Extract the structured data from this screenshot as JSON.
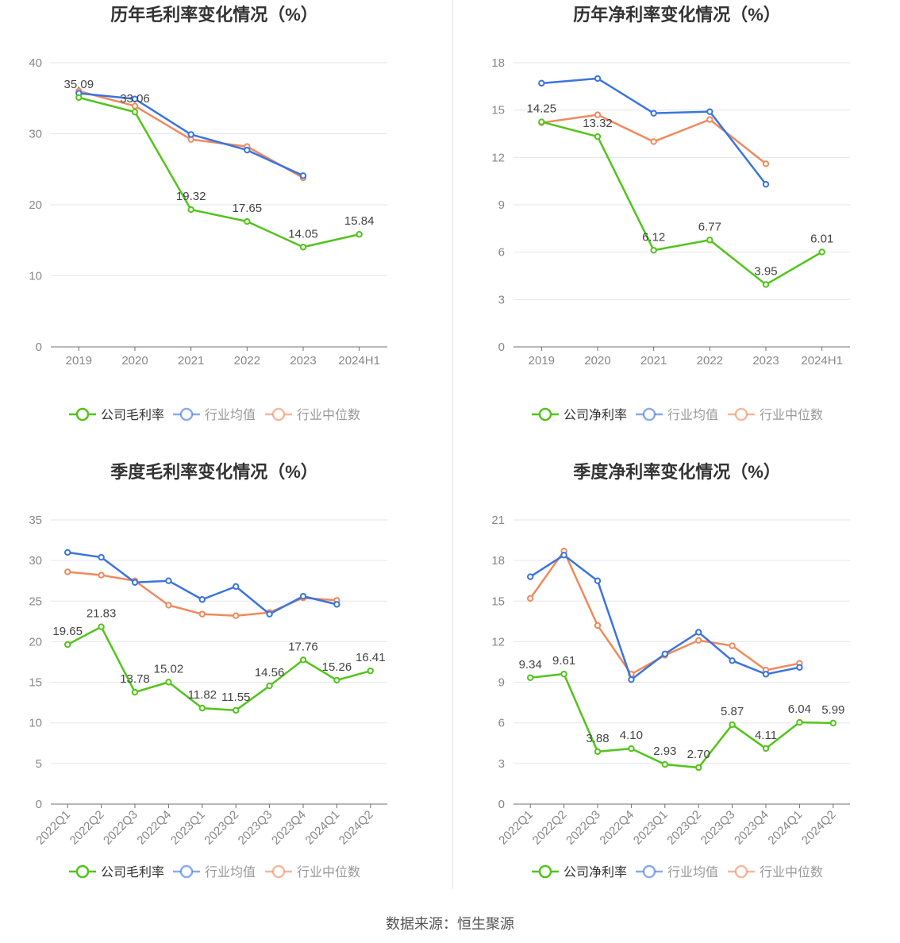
{
  "colors": {
    "company": "#52c41a",
    "industry_avg": "#3b74e0",
    "industry_median": "#f08a5d",
    "axis_text": "#888888",
    "title": "#333333",
    "grid": "#e3e6ef",
    "label": "#444444"
  },
  "source": "数据来源：恒生聚源",
  "chart_data": [
    {
      "type": "line",
      "title": "历年毛利率变化情况（%）",
      "categories": [
        "2019",
        "2020",
        "2021",
        "2022",
        "2023",
        "2024H1"
      ],
      "ylim": [
        0,
        40
      ],
      "yticks": [
        0,
        10,
        20,
        30,
        40
      ],
      "rotate_labels": false,
      "series": [
        {
          "name": "公司毛利率",
          "role": "company",
          "values": [
            35.09,
            33.06,
            19.32,
            17.65,
            14.05,
            15.84
          ],
          "labels": [
            "35.09",
            "33.06",
            "19.32",
            "17.65",
            "14.05",
            "15.84"
          ]
        },
        {
          "name": "行业均值",
          "role": "industry_avg",
          "values": [
            35.7,
            34.9,
            29.9,
            27.7,
            24.1,
            null
          ]
        },
        {
          "name": "行业中位数",
          "role": "industry_median",
          "values": [
            36.0,
            33.9,
            29.2,
            28.2,
            23.8,
            null
          ]
        }
      ],
      "legend": "bottom"
    },
    {
      "type": "line",
      "title": "历年净利率变化情况（%）",
      "categories": [
        "2019",
        "2020",
        "2021",
        "2022",
        "2023",
        "2024H1"
      ],
      "ylim": [
        0,
        18
      ],
      "yticks": [
        0,
        3,
        6,
        9,
        12,
        15,
        18
      ],
      "rotate_labels": false,
      "series": [
        {
          "name": "公司净利率",
          "role": "company",
          "values": [
            14.25,
            13.32,
            6.12,
            6.77,
            3.95,
            6.01
          ],
          "labels": [
            "14.25",
            "13.32",
            "6.12",
            "6.77",
            "3.95",
            "6.01"
          ]
        },
        {
          "name": "行业均值",
          "role": "industry_avg",
          "values": [
            16.7,
            17.0,
            14.8,
            14.9,
            10.3,
            null
          ]
        },
        {
          "name": "行业中位数",
          "role": "industry_median",
          "values": [
            14.2,
            14.7,
            13.0,
            14.4,
            11.6,
            null
          ]
        }
      ],
      "legend": "bottom"
    },
    {
      "type": "line",
      "title": "季度毛利率变化情况（%）",
      "categories": [
        "2022Q1",
        "2022Q2",
        "2022Q3",
        "2022Q4",
        "2023Q1",
        "2023Q2",
        "2023Q3",
        "2023Q4",
        "2024Q1",
        "2024Q2"
      ],
      "ylim": [
        0,
        35
      ],
      "yticks": [
        0,
        5,
        10,
        15,
        20,
        25,
        30,
        35
      ],
      "rotate_labels": true,
      "series": [
        {
          "name": "公司毛利率",
          "role": "company",
          "values": [
            19.65,
            21.83,
            13.78,
            15.02,
            11.82,
            11.55,
            14.56,
            17.76,
            15.26,
            16.41
          ],
          "labels": [
            "19.65",
            "21.83",
            "13.78",
            "15.02",
            "11.82",
            "11.55",
            "14.56",
            "17.76",
            "15.26",
            "16.41"
          ]
        },
        {
          "name": "行业均值",
          "role": "industry_avg",
          "values": [
            31.0,
            30.4,
            27.3,
            27.5,
            25.2,
            26.8,
            23.4,
            25.6,
            24.6,
            null
          ]
        },
        {
          "name": "行业中位数",
          "role": "industry_median",
          "values": [
            28.6,
            28.2,
            27.5,
            24.5,
            23.4,
            23.2,
            23.6,
            25.4,
            25.1,
            null
          ]
        }
      ],
      "legend": "bottom"
    },
    {
      "type": "line",
      "title": "季度净利率变化情况（%）",
      "categories": [
        "2022Q1",
        "2022Q2",
        "2022Q3",
        "2022Q4",
        "2023Q1",
        "2023Q2",
        "2023Q3",
        "2023Q4",
        "2024Q1",
        "2024Q2"
      ],
      "ylim": [
        0,
        21
      ],
      "yticks": [
        0,
        3,
        6,
        9,
        12,
        15,
        18,
        21
      ],
      "rotate_labels": true,
      "series": [
        {
          "name": "公司净利率",
          "role": "company",
          "values": [
            9.34,
            9.61,
            3.88,
            4.1,
            2.93,
            2.7,
            5.87,
            4.11,
            6.04,
            5.99
          ],
          "labels": [
            "9.34",
            "9.61",
            "3.88",
            "4.10",
            "2.93",
            "2.70",
            "5.87",
            "4.11",
            "6.04",
            "5.99"
          ]
        },
        {
          "name": "行业均值",
          "role": "industry_avg",
          "values": [
            16.8,
            18.4,
            16.5,
            9.2,
            11.1,
            12.7,
            10.6,
            9.6,
            10.1,
            null
          ]
        },
        {
          "name": "行业中位数",
          "role": "industry_median",
          "values": [
            15.2,
            18.7,
            13.2,
            9.6,
            11.0,
            12.1,
            11.7,
            9.9,
            10.4,
            null
          ]
        }
      ],
      "legend": "bottom"
    }
  ]
}
